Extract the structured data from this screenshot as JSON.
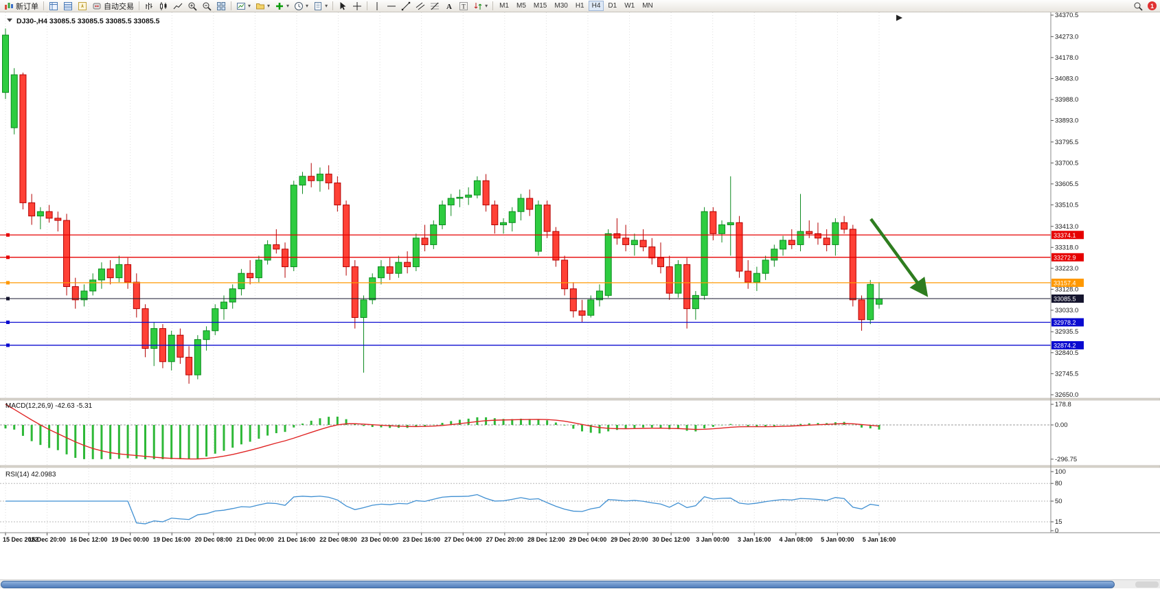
{
  "toolbar": {
    "new_order": "新订单",
    "autotrading": "自动交易",
    "timeframes": [
      "M1",
      "M5",
      "M15",
      "M30",
      "H1",
      "H4",
      "D1",
      "W1",
      "MN"
    ],
    "active_timeframe": "H4",
    "notification_count": "1"
  },
  "chart": {
    "title": "DJ30-,H4 33085.5 33085.5 33085.5 33085.5",
    "symbol": "DJ30-",
    "period": "H4",
    "y_axis_labels": [
      "34370.5",
      "34273.0",
      "34178.0",
      "34083.0",
      "33988.0",
      "33893.0",
      "33795.5",
      "33700.5",
      "33605.5",
      "33510.5",
      "33413.0",
      "33318.0",
      "33223.0",
      "33128.0",
      "33033.0",
      "32935.5",
      "32840.5",
      "32745.5",
      "32650.0"
    ],
    "time_labels": [
      "15 Dec 2022",
      "15 Dec 20:00",
      "16 Dec 12:00",
      "19 Dec 00:00",
      "19 Dec 16:00",
      "20 Dec 08:00",
      "21 Dec 00:00",
      "21 Dec 16:00",
      "22 Dec 08:00",
      "23 Dec 00:00",
      "23 Dec 16:00",
      "27 Dec 04:00",
      "27 Dec 20:00",
      "28 Dec 12:00",
      "29 Dec 04:00",
      "29 Dec 20:00",
      "30 Dec 12:00",
      "3 Jan 00:00",
      "3 Jan 16:00",
      "4 Jan 08:00",
      "5 Jan 00:00",
      "5 Jan 16:00"
    ],
    "price_lines": [
      {
        "price": 33374.1,
        "label": "33374.1",
        "color": "#e60000",
        "role": "resistance"
      },
      {
        "price": 33272.9,
        "label": "33272.9",
        "color": "#e60000",
        "role": "resistance"
      },
      {
        "price": 33157.4,
        "label": "33157.4",
        "color": "#ff9800",
        "role": "pivot"
      },
      {
        "price": 33085.5,
        "label": "33085.5",
        "color": "#15152e",
        "role": "bid"
      },
      {
        "price": 32978.2,
        "label": "32978.2",
        "color": "#0a0ad0",
        "role": "support"
      },
      {
        "price": 32874.2,
        "label": "32874.2",
        "color": "#0a0ad0",
        "role": "support"
      }
    ],
    "annotation_arrow": {
      "color": "#2e7d1f",
      "direction": "down-right"
    }
  },
  "chart_data": {
    "type": "candlestick",
    "symbol": "DJ30-",
    "period": "H4",
    "y_range": [
      32650.0,
      34370.5
    ],
    "bull_color": "#2ecc40",
    "bear_color": "#ff4136",
    "candles_ohlc": [
      [
        34020,
        34310,
        33990,
        34280
      ],
      [
        33860,
        34130,
        33830,
        34100
      ],
      [
        34100,
        34110,
        33490,
        33520
      ],
      [
        33520,
        33560,
        33420,
        33460
      ],
      [
        33460,
        33500,
        33400,
        33480
      ],
      [
        33480,
        33510,
        33430,
        33450
      ],
      [
        33450,
        33480,
        33390,
        33440
      ],
      [
        33440,
        33470,
        33100,
        33140
      ],
      [
        33140,
        33180,
        33040,
        33080
      ],
      [
        33080,
        33150,
        33050,
        33120
      ],
      [
        33120,
        33200,
        33100,
        33170
      ],
      [
        33170,
        33250,
        33130,
        33220
      ],
      [
        33220,
        33260,
        33150,
        33180
      ],
      [
        33180,
        33280,
        33160,
        33240
      ],
      [
        33240,
        33270,
        33130,
        33160
      ],
      [
        33160,
        33200,
        33000,
        33040
      ],
      [
        33040,
        33060,
        32820,
        32860
      ],
      [
        32860,
        32980,
        32780,
        32950
      ],
      [
        32950,
        32970,
        32770,
        32800
      ],
      [
        32800,
        32940,
        32760,
        32920
      ],
      [
        32920,
        32950,
        32790,
        32820
      ],
      [
        32820,
        32870,
        32700,
        32740
      ],
      [
        32740,
        32920,
        32720,
        32900
      ],
      [
        32900,
        32960,
        32850,
        32940
      ],
      [
        32940,
        33060,
        32920,
        33040
      ],
      [
        33040,
        33100,
        32990,
        33070
      ],
      [
        33070,
        33150,
        33040,
        33130
      ],
      [
        33130,
        33220,
        33100,
        33200
      ],
      [
        33200,
        33260,
        33150,
        33180
      ],
      [
        33180,
        33280,
        33160,
        33260
      ],
      [
        33260,
        33350,
        33240,
        33330
      ],
      [
        33330,
        33400,
        33290,
        33310
      ],
      [
        33310,
        33340,
        33180,
        33230
      ],
      [
        33230,
        33620,
        33210,
        33600
      ],
      [
        33600,
        33660,
        33560,
        33640
      ],
      [
        33640,
        33700,
        33590,
        33620
      ],
      [
        33620,
        33680,
        33570,
        33650
      ],
      [
        33650,
        33690,
        33580,
        33610
      ],
      [
        33610,
        33640,
        33480,
        33510
      ],
      [
        33510,
        33530,
        33190,
        33230
      ],
      [
        33230,
        33260,
        32950,
        33000
      ],
      [
        33000,
        33100,
        32750,
        33080
      ],
      [
        33080,
        33200,
        33060,
        33180
      ],
      [
        33180,
        33260,
        33150,
        33230
      ],
      [
        33230,
        33270,
        33170,
        33200
      ],
      [
        33200,
        33280,
        33180,
        33250
      ],
      [
        33250,
        33300,
        33200,
        33230
      ],
      [
        33230,
        33380,
        33210,
        33360
      ],
      [
        33360,
        33420,
        33300,
        33330
      ],
      [
        33330,
        33440,
        33310,
        33420
      ],
      [
        33420,
        33530,
        33400,
        33510
      ],
      [
        33510,
        33560,
        33460,
        33540
      ],
      [
        33540,
        33580,
        33500,
        33545
      ],
      [
        33545,
        33590,
        33510,
        33555
      ],
      [
        33555,
        33640,
        33540,
        33620
      ],
      [
        33620,
        33650,
        33480,
        33510
      ],
      [
        33510,
        33530,
        33380,
        33420
      ],
      [
        33420,
        33450,
        33380,
        33430
      ],
      [
        33430,
        33500,
        33390,
        33480
      ],
      [
        33480,
        33560,
        33440,
        33540
      ],
      [
        33540,
        33580,
        33460,
        33490
      ],
      [
        33300,
        33530,
        33280,
        33510
      ],
      [
        33510,
        33530,
        33360,
        33390
      ],
      [
        33390,
        33410,
        33230,
        33260
      ],
      [
        33260,
        33280,
        33100,
        33130
      ],
      [
        33130,
        33160,
        33000,
        33030
      ],
      [
        33030,
        33080,
        32980,
        33010
      ],
      [
        33010,
        33100,
        33000,
        33080
      ],
      [
        33080,
        33150,
        33050,
        33120
      ],
      [
        33100,
        33400,
        33090,
        33380
      ],
      [
        33380,
        33450,
        33330,
        33360
      ],
      [
        33360,
        33420,
        33300,
        33330
      ],
      [
        33330,
        33380,
        33280,
        33350
      ],
      [
        33350,
        33400,
        33300,
        33320
      ],
      [
        33320,
        33360,
        33240,
        33270
      ],
      [
        33270,
        33340,
        33200,
        33230
      ],
      [
        33230,
        33280,
        33080,
        33110
      ],
      [
        33110,
        33260,
        33090,
        33240
      ],
      [
        33240,
        33270,
        32950,
        33040
      ],
      [
        33040,
        33120,
        32990,
        33100
      ],
      [
        33100,
        33500,
        33080,
        33480
      ],
      [
        33480,
        33500,
        33350,
        33380
      ],
      [
        33380,
        33440,
        33340,
        33420
      ],
      [
        33420,
        33640,
        33280,
        33430
      ],
      [
        33430,
        33460,
        33180,
        33210
      ],
      [
        33210,
        33260,
        33130,
        33160
      ],
      [
        33160,
        33230,
        33120,
        33200
      ],
      [
        33200,
        33280,
        33170,
        33260
      ],
      [
        33260,
        33330,
        33230,
        33310
      ],
      [
        33310,
        33370,
        33280,
        33350
      ],
      [
        33350,
        33400,
        33310,
        33330
      ],
      [
        33330,
        33560,
        33300,
        33390
      ],
      [
        33390,
        33440,
        33360,
        33380
      ],
      [
        33380,
        33430,
        33330,
        33360
      ],
      [
        33360,
        33400,
        33300,
        33330
      ],
      [
        33330,
        33450,
        33280,
        33430
      ],
      [
        33430,
        33460,
        33380,
        33400
      ],
      [
        33400,
        33420,
        33050,
        33080
      ],
      [
        33080,
        33100,
        32940,
        32990
      ],
      [
        32990,
        33170,
        32970,
        33150
      ],
      [
        33060,
        33160,
        33040,
        33085.5
      ]
    ]
  },
  "indicators": {
    "macd": {
      "label": "MACD(12,26,9) -42.63 -5.31",
      "params": "12,26,9",
      "values": [
        "-42.63",
        "-5.31"
      ],
      "scale_labels": [
        "178.8",
        "0.00",
        "-296.75"
      ],
      "histogram_color": "#2db837",
      "signal_color": "#e02424"
    },
    "rsi": {
      "label": "RSI(14) 42.0983",
      "value": "42.0983",
      "scale_labels": [
        "100",
        "80",
        "50",
        "15",
        "0"
      ],
      "levels": [
        80,
        50,
        15
      ],
      "line_color": "#3f8fd2"
    }
  }
}
